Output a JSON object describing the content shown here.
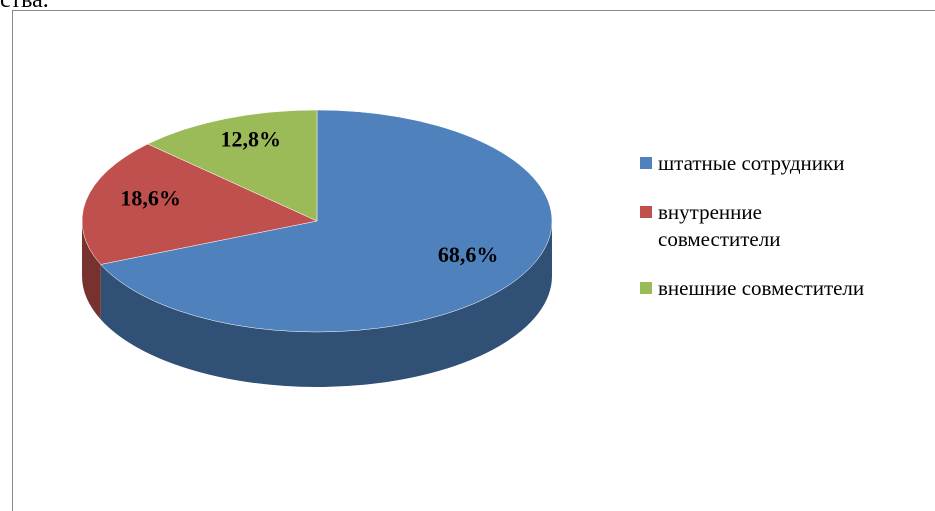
{
  "text_above": "ства.",
  "chart_data": {
    "type": "pie",
    "categories": [
      "штатные сотрудники",
      "внутренние совместители",
      "внешние совместители"
    ],
    "values": [
      68.6,
      18.6,
      12.8
    ],
    "value_labels": [
      "68,6%",
      "18,6%",
      "12,8%"
    ],
    "colors": [
      "#4f81bd",
      "#c0504d",
      "#9bbb59"
    ],
    "legend": "right"
  }
}
